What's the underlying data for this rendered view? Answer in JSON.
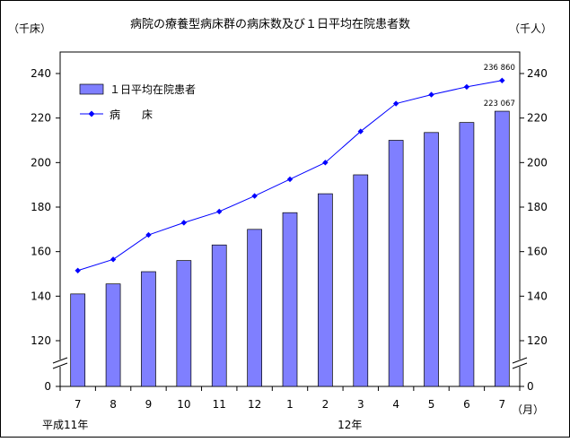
{
  "chart_data": {
    "type": "bar+line",
    "title": "病院の療養型病床群の病床数及び１日平均在院患者数",
    "y_left_unit": "（千床）",
    "y_right_unit": "（千人）",
    "x_unit": "（月）",
    "categories": [
      "7",
      "8",
      "9",
      "10",
      "11",
      "12",
      "1",
      "2",
      "3",
      "4",
      "5",
      "6",
      "7"
    ],
    "era_labels": [
      {
        "text": "平成11年",
        "at_category": "7"
      },
      {
        "text": "12年",
        "at_category": "3"
      }
    ],
    "y_ticks": [
      "0",
      "120",
      "140",
      "160",
      "180",
      "200",
      "220",
      "240"
    ],
    "ylim": [
      110,
      250
    ],
    "axis_break": true,
    "grid": false,
    "legend_placement": "top-left",
    "series": [
      {
        "name": "１日平均在院患者",
        "kind": "bar",
        "color": "#7f7fff",
        "values": [
          141,
          145.5,
          151,
          156,
          163,
          170,
          177.5,
          186,
          194.5,
          210,
          213.5,
          218,
          223.067
        ]
      },
      {
        "name": "病　　床",
        "kind": "line",
        "color": "#0000ff",
        "values": [
          151.5,
          156.5,
          167.5,
          173,
          178,
          185,
          192.5,
          200,
          214,
          226.5,
          230.5,
          234,
          236.86
        ]
      }
    ],
    "annotations": [
      {
        "text": "236 860",
        "series": "病　　床",
        "category_index": 12
      },
      {
        "text": "223 067",
        "series": "１日平均在院患者",
        "category_index": 12
      }
    ]
  }
}
